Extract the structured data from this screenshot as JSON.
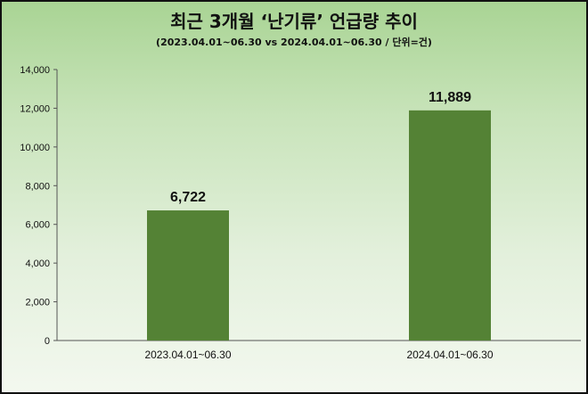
{
  "chart_data": {
    "type": "bar",
    "title": "최근 3개월 ‘난기류’ 언급량  추이",
    "subtitle": "(2023.04.01~06.30 vs 2024.04.01~06.30  / 단위=건)",
    "categories": [
      "2023.04.01~06.30",
      "2024.04.01~06.30"
    ],
    "values": [
      6722,
      11889
    ],
    "data_labels": [
      "6,722",
      "11,889"
    ],
    "ylim": [
      0,
      14000
    ],
    "yticks": [
      0,
      2000,
      4000,
      6000,
      8000,
      10000,
      12000,
      14000
    ],
    "ytick_labels": [
      "0",
      "2,000",
      "4,000",
      "6,000",
      "8,000",
      "10,000",
      "12,000",
      "14,000"
    ],
    "xlabel": "",
    "ylabel": "",
    "grid": false,
    "legend": "none",
    "bar_color": "#548235"
  }
}
